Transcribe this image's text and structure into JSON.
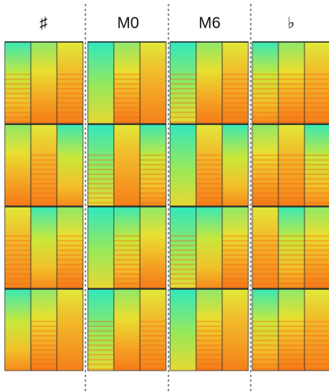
{
  "header": {
    "columns": [
      "♯",
      "M0",
      "M6",
      "♭"
    ]
  }
}
